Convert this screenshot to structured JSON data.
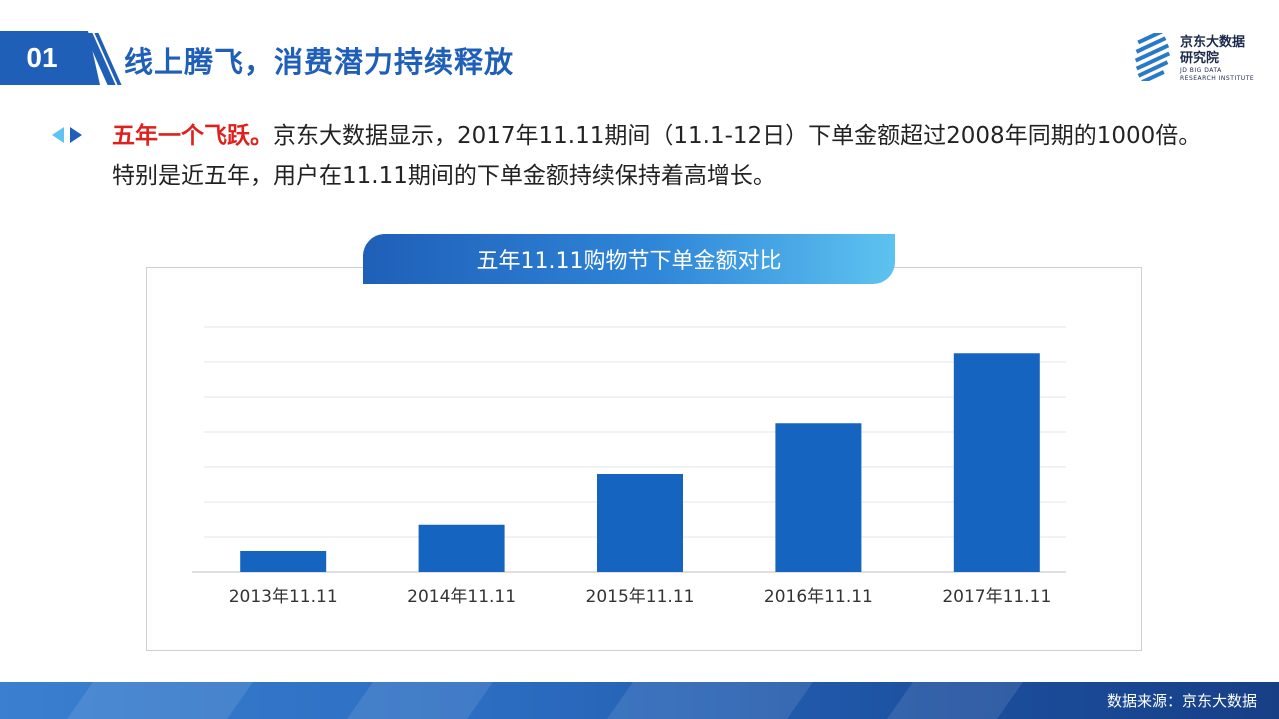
{
  "header": {
    "number": "01",
    "title": "线上腾飞，消费潜力持续释放"
  },
  "logo": {
    "cn_line1": "京东大数据",
    "cn_line2": "研究院",
    "en_line1": "JD BIG DATA",
    "en_line2": "RESEARCH INSTITUTE"
  },
  "body": {
    "highlight": "五年一个飞跃。",
    "text": "京东大数据显示，2017年11.11期间（11.1-12日）下单金额超过2008年同期的1000倍。特别是近五年，用户在11.11期间的下单金额持续保持着高增长。"
  },
  "colors": {
    "brand": "#1f5fb8",
    "bar": "#1565c0",
    "highlight": "#e0201d"
  },
  "chart_data": {
    "type": "bar",
    "title": "五年11.11购物节下单金额对比",
    "categories": [
      "2013年11.11",
      "2014年11.11",
      "2015年11.11",
      "2016年11.11",
      "2017年11.11"
    ],
    "values": [
      12,
      27,
      56,
      85,
      125
    ],
    "ylim": [
      0,
      140
    ],
    "grid": true,
    "xlabel": "",
    "ylabel": ""
  },
  "footer": {
    "source": "数据来源：京东大数据"
  }
}
